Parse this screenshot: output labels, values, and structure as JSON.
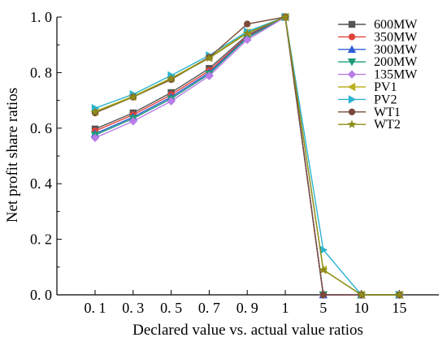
{
  "chart_data": {
    "type": "line",
    "xlabel": "Declared value vs. actual value ratios",
    "ylabel": "Net profit share ratios",
    "categories": [
      "0. 1",
      "0. 3",
      "0. 5",
      "0. 7",
      "0. 9",
      "1",
      "5",
      "10",
      "15"
    ],
    "yticks": [
      "0. 0",
      "0. 2",
      "0. 4",
      "0. 6",
      "0. 8",
      "1. 0"
    ],
    "ylim": [
      0,
      1.0
    ],
    "grid": false,
    "legend_position": "top-right",
    "series": [
      {
        "name": "600MW",
        "color": "#555555",
        "marker": "square",
        "values": [
          0.597,
          0.655,
          0.728,
          0.815,
          0.935,
          1.0,
          0.0,
          0.0,
          0.0
        ]
      },
      {
        "name": "350MW",
        "color": "#e0443c",
        "marker": "circle",
        "values": [
          0.59,
          0.648,
          0.72,
          0.807,
          0.93,
          1.0,
          0.0,
          0.0,
          0.0
        ]
      },
      {
        "name": "300MW",
        "color": "#2f5ed6",
        "marker": "triangle-up",
        "values": [
          0.58,
          0.64,
          0.712,
          0.8,
          0.927,
          1.0,
          0.0,
          0.0,
          0.0
        ]
      },
      {
        "name": "200MW",
        "color": "#1d9b78",
        "marker": "triangle-down",
        "values": [
          0.575,
          0.635,
          0.706,
          0.795,
          0.925,
          1.0,
          0.0,
          0.0,
          0.0
        ]
      },
      {
        "name": "135MW",
        "color": "#b77de8",
        "marker": "diamond",
        "values": [
          0.565,
          0.625,
          0.697,
          0.788,
          0.918,
          1.0,
          0.0,
          0.0,
          0.0
        ]
      },
      {
        "name": "PV1",
        "color": "#b9b21e",
        "marker": "triangle-left",
        "values": [
          0.66,
          0.715,
          0.78,
          0.855,
          0.945,
          1.0,
          0.09,
          0.0,
          0.0
        ]
      },
      {
        "name": "PV2",
        "color": "#2bb3d0",
        "marker": "triangle-right",
        "values": [
          0.672,
          0.722,
          0.79,
          0.862,
          0.948,
          1.0,
          0.162,
          0.0,
          0.0
        ]
      },
      {
        "name": "WT1",
        "color": "#7a4a3a",
        "marker": "circle",
        "values": [
          0.655,
          0.712,
          0.775,
          0.855,
          0.975,
          1.0,
          0.0,
          0.0,
          0.0
        ]
      },
      {
        "name": "WT2",
        "color": "#8c8c1a",
        "marker": "star",
        "values": [
          0.658,
          0.712,
          0.778,
          0.852,
          0.942,
          1.0,
          0.09,
          0.0,
          0.0
        ]
      }
    ]
  }
}
